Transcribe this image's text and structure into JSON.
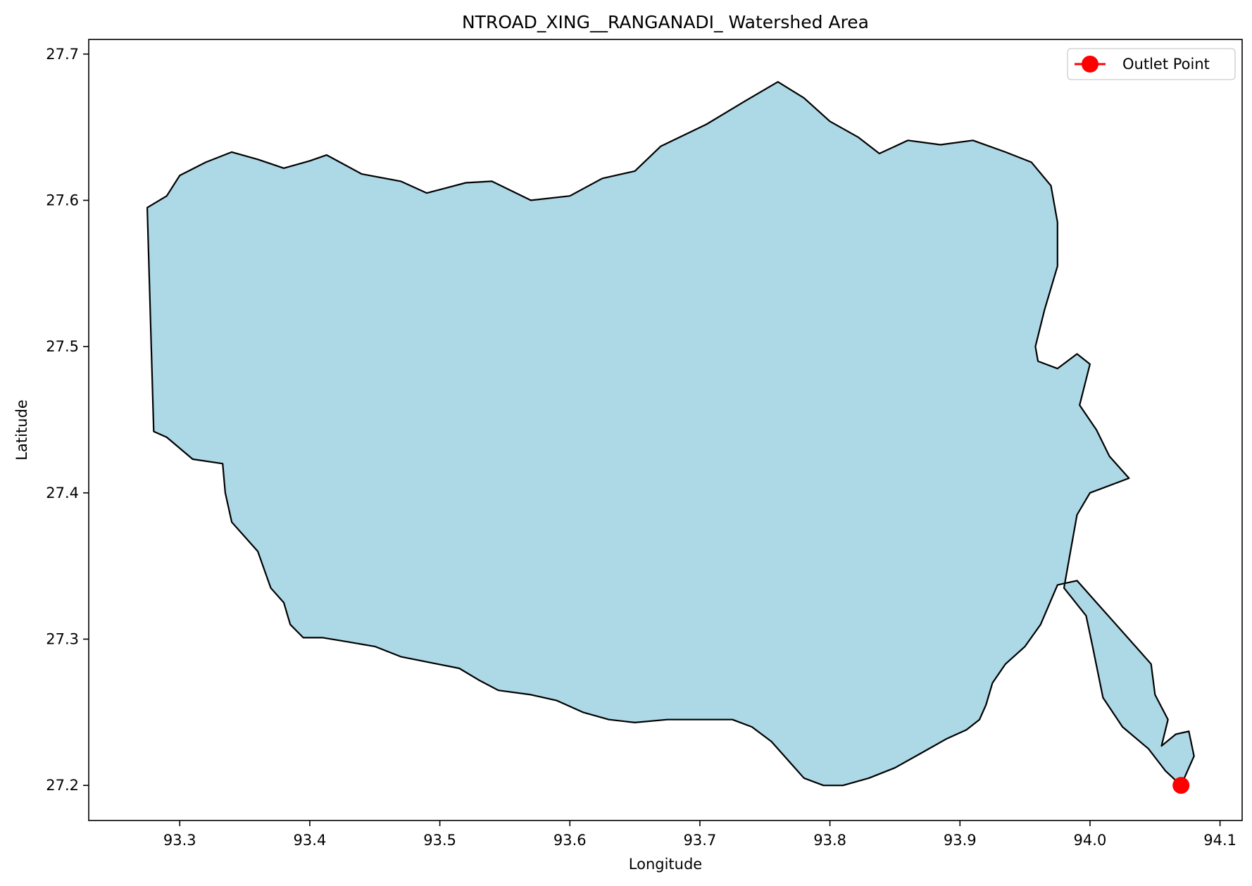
{
  "chart_data": {
    "type": "map",
    "title": "NTROAD_XING__RANGANADI_ Watershed Area",
    "xlabel": "Longitude",
    "ylabel": "Latitude",
    "xlim": [
      93.23,
      94.117
    ],
    "ylim": [
      27.176,
      27.71
    ],
    "x_ticks": [
      93.3,
      93.4,
      93.5,
      93.6,
      93.7,
      93.8,
      93.9,
      94.0,
      94.1
    ],
    "x_tick_labels": [
      "93.3",
      "93.4",
      "93.5",
      "93.6",
      "93.7",
      "93.8",
      "93.9",
      "94.0",
      "94.1"
    ],
    "y_ticks": [
      27.2,
      27.3,
      27.4,
      27.5,
      27.6,
      27.7
    ],
    "y_tick_labels": [
      "27.2",
      "27.3",
      "27.4",
      "27.5",
      "27.6",
      "27.7"
    ],
    "grid": false,
    "legend": {
      "placement": "top-right",
      "entries": [
        {
          "label": "Outlet Point",
          "color": "#ff0000",
          "marker": "circle"
        }
      ]
    },
    "watershed": {
      "fill": "#add8e6",
      "stroke": "#000000",
      "boundary": [
        [
          93.275,
          27.595
        ],
        [
          93.29,
          27.603
        ],
        [
          93.3,
          27.617
        ],
        [
          93.32,
          27.626
        ],
        [
          93.34,
          27.633
        ],
        [
          93.36,
          27.628
        ],
        [
          93.38,
          27.622
        ],
        [
          93.4,
          27.627
        ],
        [
          93.413,
          27.631
        ],
        [
          93.44,
          27.618
        ],
        [
          93.47,
          27.613
        ],
        [
          93.49,
          27.605
        ],
        [
          93.52,
          27.612
        ],
        [
          93.54,
          27.613
        ],
        [
          93.57,
          27.6
        ],
        [
          93.6,
          27.603
        ],
        [
          93.625,
          27.615
        ],
        [
          93.65,
          27.62
        ],
        [
          93.67,
          27.637
        ],
        [
          93.705,
          27.652
        ],
        [
          93.735,
          27.668
        ],
        [
          93.76,
          27.681
        ],
        [
          93.78,
          27.67
        ],
        [
          93.8,
          27.654
        ],
        [
          93.822,
          27.643
        ],
        [
          93.838,
          27.632
        ],
        [
          93.86,
          27.641
        ],
        [
          93.885,
          27.638
        ],
        [
          93.91,
          27.641
        ],
        [
          93.935,
          27.633
        ],
        [
          93.955,
          27.626
        ],
        [
          93.97,
          27.61
        ],
        [
          93.975,
          27.585
        ],
        [
          93.975,
          27.555
        ],
        [
          93.965,
          27.525
        ],
        [
          93.958,
          27.5
        ],
        [
          93.96,
          27.49
        ],
        [
          93.975,
          27.485
        ],
        [
          93.99,
          27.495
        ],
        [
          94.0,
          27.488
        ],
        [
          93.992,
          27.46
        ],
        [
          94.005,
          27.443
        ],
        [
          94.015,
          27.425
        ],
        [
          94.03,
          27.41
        ],
        [
          94.0,
          27.4
        ],
        [
          93.99,
          27.385
        ],
        [
          93.985,
          27.36
        ],
        [
          93.98,
          27.335
        ],
        [
          93.997,
          27.316
        ],
        [
          94.002,
          27.295
        ],
        [
          94.01,
          27.26
        ],
        [
          94.025,
          27.24
        ],
        [
          94.045,
          27.225
        ],
        [
          94.058,
          27.21
        ],
        [
          94.07,
          27.2
        ],
        [
          94.08,
          27.22
        ],
        [
          94.076,
          27.237
        ],
        [
          94.066,
          27.235
        ],
        [
          94.055,
          27.227
        ],
        [
          94.06,
          27.245
        ],
        [
          94.05,
          27.262
        ],
        [
          94.047,
          27.283
        ],
        [
          94.035,
          27.295
        ],
        [
          94.02,
          27.31
        ],
        [
          94.005,
          27.325
        ],
        [
          93.99,
          27.34
        ],
        [
          93.975,
          27.337
        ],
        [
          93.962,
          27.31
        ],
        [
          93.95,
          27.295
        ],
        [
          93.935,
          27.283
        ],
        [
          93.925,
          27.27
        ],
        [
          93.92,
          27.255
        ],
        [
          93.915,
          27.245
        ],
        [
          93.905,
          27.238
        ],
        [
          93.89,
          27.232
        ],
        [
          93.87,
          27.222
        ],
        [
          93.85,
          27.212
        ],
        [
          93.83,
          27.205
        ],
        [
          93.81,
          27.2
        ],
        [
          93.795,
          27.2
        ],
        [
          93.78,
          27.205
        ],
        [
          93.77,
          27.215
        ],
        [
          93.755,
          27.23
        ],
        [
          93.74,
          27.24
        ],
        [
          93.725,
          27.245
        ],
        [
          93.7,
          27.245
        ],
        [
          93.675,
          27.245
        ],
        [
          93.65,
          27.243
        ],
        [
          93.63,
          27.245
        ],
        [
          93.61,
          27.25
        ],
        [
          93.59,
          27.258
        ],
        [
          93.57,
          27.262
        ],
        [
          93.545,
          27.265
        ],
        [
          93.53,
          27.272
        ],
        [
          93.515,
          27.28
        ]
      ],
      "southern_boundary": [
        [
          93.47,
          27.288
        ],
        [
          93.45,
          27.295
        ],
        [
          93.43,
          27.298
        ],
        [
          93.41,
          27.301
        ],
        [
          93.395,
          27.301
        ],
        [
          93.385,
          27.31
        ],
        [
          93.38,
          27.325
        ],
        [
          93.37,
          27.335
        ],
        [
          93.36,
          27.36
        ],
        [
          93.34,
          27.38
        ],
        [
          93.335,
          27.4
        ],
        [
          93.333,
          27.42
        ],
        [
          93.31,
          27.423
        ],
        [
          93.29,
          27.438
        ],
        [
          93.28,
          27.442
        ]
      ]
    },
    "outlet_point": {
      "label": "Outlet Point",
      "lon": 94.07,
      "lat": 27.2,
      "color": "#ff0000"
    }
  }
}
